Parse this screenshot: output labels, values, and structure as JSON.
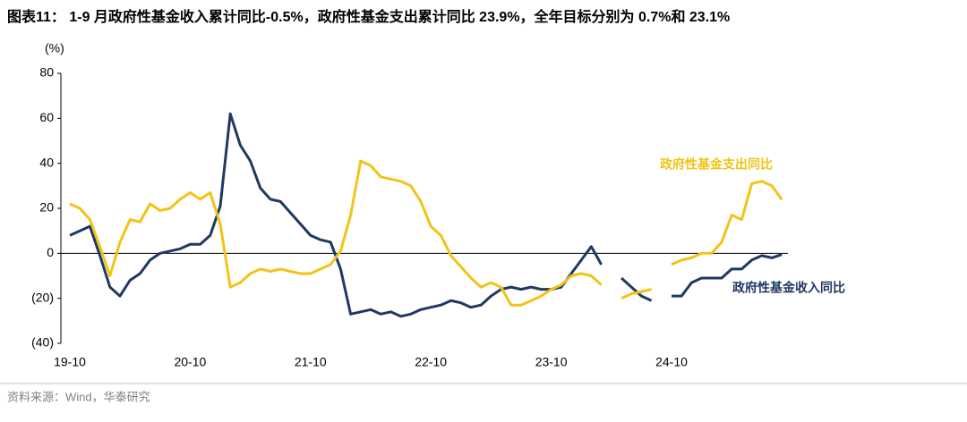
{
  "chart_data": {
    "type": "line",
    "title": "图表11：  1-9 月政府性基金收入累计同比-0.5%，政府性基金支出累计同比 23.9%，全年目标分别为 0.7%和 23.1%",
    "y_unit": "(%)",
    "source": "资料来源：Wind，华泰研究",
    "categories": [
      "19-10",
      null,
      null,
      null,
      null,
      null,
      null,
      null,
      null,
      null,
      null,
      null,
      "20-10",
      null,
      null,
      null,
      null,
      null,
      null,
      null,
      null,
      null,
      null,
      null,
      "21-10",
      null,
      null,
      null,
      null,
      null,
      null,
      null,
      null,
      null,
      null,
      null,
      "22-10",
      null,
      null,
      null,
      null,
      null,
      null,
      null,
      null,
      null,
      null,
      null,
      "23-10",
      null,
      null,
      null,
      null,
      null,
      null,
      null,
      null,
      null,
      null,
      null,
      "24-10",
      null,
      null,
      null,
      null,
      null,
      null,
      null,
      null,
      null,
      null,
      null
    ],
    "series": [
      {
        "name": "政府性基金收入同比",
        "color": "#1f3864",
        "values": [
          8,
          10,
          12,
          -1,
          -15,
          -19,
          -12,
          -9,
          -3,
          0,
          1,
          2,
          4,
          4,
          8,
          21,
          62,
          48,
          41,
          29,
          24,
          23,
          18,
          13,
          8,
          6,
          5,
          -7,
          -27,
          -26,
          -25,
          -27,
          -26,
          -28,
          -27,
          -25,
          -24,
          -23,
          -21,
          -22,
          -24,
          -23,
          -19,
          -16,
          -15,
          -16,
          -15,
          -16,
          -16,
          -15,
          -9,
          -3,
          3,
          -5,
          null,
          -11,
          -15,
          -19,
          -21,
          null,
          -19,
          -19,
          -13,
          -11,
          -11,
          -11,
          -7,
          -7,
          -3,
          -1,
          -2,
          -0.5
        ]
      },
      {
        "name": "政府性基金支出同比",
        "color": "#f2c318",
        "values": [
          22,
          20,
          15,
          3,
          -10,
          5,
          15,
          14,
          22,
          19,
          20,
          24,
          27,
          24,
          27,
          13,
          -15,
          -13,
          -9,
          -7,
          -8,
          -7,
          -8,
          -9,
          -9,
          -7,
          -5,
          1,
          17,
          41,
          39,
          34,
          33,
          32,
          30,
          23,
          12,
          8,
          -1,
          -6,
          -11,
          -15,
          -13,
          -15,
          -23,
          -23,
          -21,
          -19,
          -16,
          -14,
          -10,
          -9,
          -10,
          -14,
          null,
          -20,
          -18,
          -17,
          -16,
          null,
          -5,
          -3,
          -2,
          0,
          0,
          5,
          17,
          15,
          31,
          32,
          30,
          23.9
        ]
      }
    ],
    "ylim": [
      -40,
      80
    ],
    "yticks": [
      {
        "value": -40,
        "label": "(40)"
      },
      {
        "value": -20,
        "label": "(20)"
      },
      0,
      20,
      40,
      60,
      80
    ]
  }
}
